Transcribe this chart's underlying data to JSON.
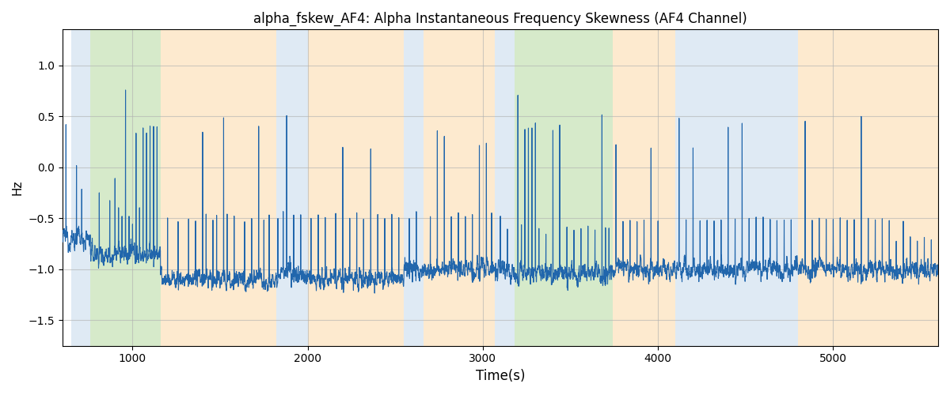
{
  "title": "alpha_fskew_AF4: Alpha Instantaneous Frequency Skewness (AF4 Channel)",
  "xlabel": "Time(s)",
  "ylabel": "Hz",
  "xlim": [
    600,
    5600
  ],
  "ylim": [
    -1.75,
    1.35
  ],
  "line_color": "#2166ac",
  "line_width": 0.8,
  "background_regions": [
    {
      "xmin": 650,
      "xmax": 760,
      "color": "#c6d9ec",
      "alpha": 0.55
    },
    {
      "xmin": 760,
      "xmax": 1160,
      "color": "#b5d9a0",
      "alpha": 0.55
    },
    {
      "xmin": 1160,
      "xmax": 1820,
      "color": "#fdd9a8",
      "alpha": 0.55
    },
    {
      "xmin": 1820,
      "xmax": 2000,
      "color": "#c6d9ec",
      "alpha": 0.55
    },
    {
      "xmin": 2000,
      "xmax": 2550,
      "color": "#fdd9a8",
      "alpha": 0.55
    },
    {
      "xmin": 2550,
      "xmax": 2660,
      "color": "#c6d9ec",
      "alpha": 0.55
    },
    {
      "xmin": 2660,
      "xmax": 3070,
      "color": "#fdd9a8",
      "alpha": 0.55
    },
    {
      "xmin": 3070,
      "xmax": 3180,
      "color": "#c6d9ec",
      "alpha": 0.55
    },
    {
      "xmin": 3180,
      "xmax": 3740,
      "color": "#b5d9a0",
      "alpha": 0.55
    },
    {
      "xmin": 3740,
      "xmax": 3870,
      "color": "#fdd9a8",
      "alpha": 0.55
    },
    {
      "xmin": 3870,
      "xmax": 4100,
      "color": "#fdd9a8",
      "alpha": 0.55
    },
    {
      "xmin": 4100,
      "xmax": 4800,
      "color": "#c6d9ec",
      "alpha": 0.55
    },
    {
      "xmin": 4800,
      "xmax": 5600,
      "color": "#fdd9a8",
      "alpha": 0.55
    }
  ],
  "xticks": [
    1000,
    2000,
    3000,
    4000,
    5000
  ],
  "yticks": [
    -1.5,
    -1.0,
    -0.5,
    0.0,
    0.5,
    1.0
  ],
  "grid_color": "#b0b0b0",
  "grid_alpha": 0.6,
  "grid_linewidth": 0.8,
  "title_fontsize": 12,
  "figsize": [
    12,
    5
  ],
  "dpi": 100,
  "t_start": 600,
  "t_end": 5600,
  "n_points": 5000
}
